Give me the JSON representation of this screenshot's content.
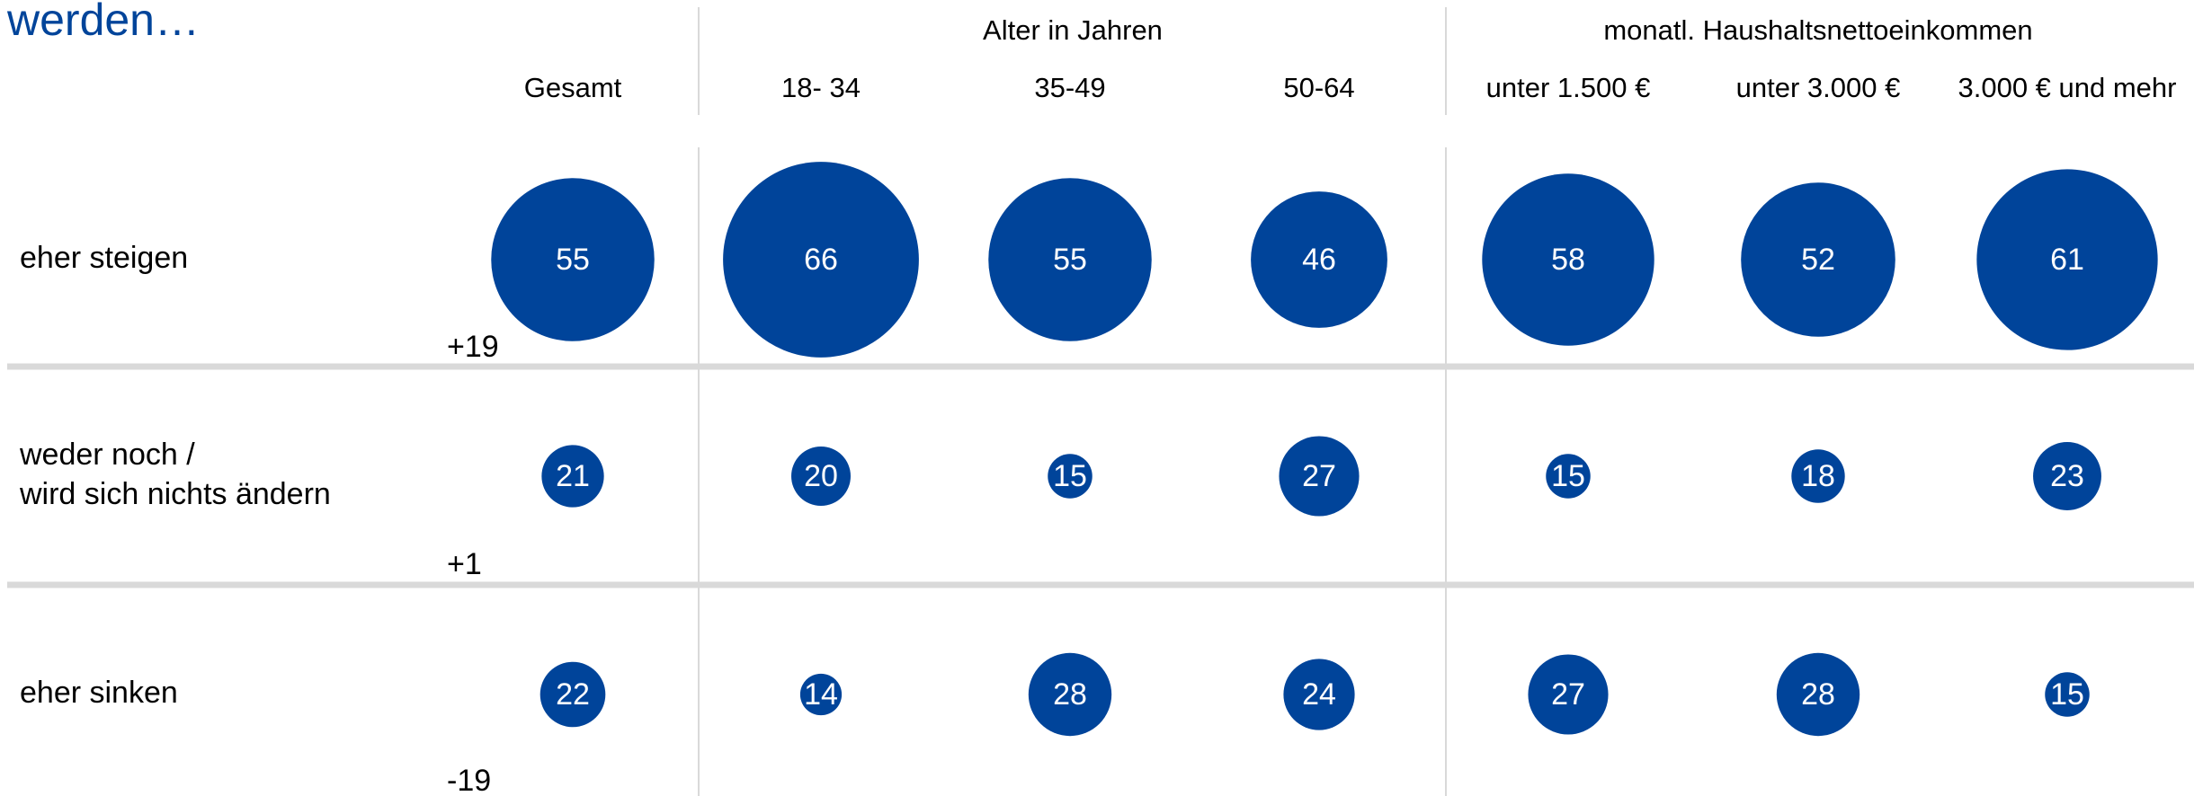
{
  "chart_data": {
    "type": "bubble",
    "title": "werden…",
    "column_groups": [
      "Alter in Jahren",
      "monatl. Haushaltsnettoeinkommen"
    ],
    "categories": [
      "Gesamt",
      "18- 34",
      "35-49",
      "50-64",
      "unter 1.500 €",
      "unter 3.000 €",
      "3.000 € und mehr"
    ],
    "color": "#00449a",
    "series": [
      {
        "name": "eher steigen",
        "values": [
          55,
          66,
          55,
          46,
          58,
          52,
          61
        ]
      },
      {
        "name": "weder noch / wird sich nichts ändern",
        "values": [
          21,
          20,
          15,
          27,
          15,
          18,
          23
        ]
      },
      {
        "name": "eher sinken",
        "values": [
          22,
          14,
          28,
          24,
          27,
          28,
          15
        ]
      }
    ],
    "annotations": [
      "+19",
      "+1",
      "-19"
    ]
  }
}
